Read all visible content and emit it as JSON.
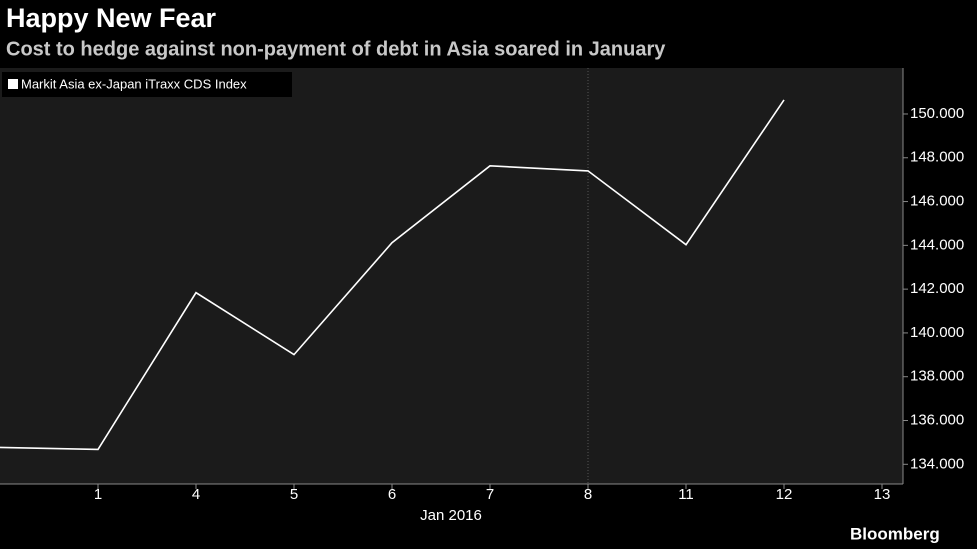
{
  "chart_data": {
    "type": "line",
    "title": "Happy New Fear",
    "subtitle": "Cost to hedge against non-payment of debt in Asia soared in January",
    "x_label": "Jan 2016",
    "source": "Bloomberg",
    "categories": [
      null,
      "1",
      "4",
      "5",
      "6",
      "7",
      "8",
      "11",
      "12",
      "13"
    ],
    "series": [
      {
        "name": "Markit Asia ex-Japan iTraxx CDS Index",
        "color": "#ffffff",
        "values": [
          134.77,
          134.68,
          141.84,
          139.01,
          144.12,
          147.63,
          147.4,
          144.03,
          150.64,
          null
        ]
      }
    ],
    "ylim": [
      133.1,
      152.1
    ],
    "yticks": [
      {
        "value": 134,
        "label": "134.000"
      },
      {
        "value": 136,
        "label": "136.000"
      },
      {
        "value": 138,
        "label": "138.000"
      },
      {
        "value": 140,
        "label": "140.000"
      },
      {
        "value": 142,
        "label": "142.000"
      },
      {
        "value": 144,
        "label": "144.000"
      },
      {
        "value": 146,
        "label": "146.000"
      },
      {
        "value": 148,
        "label": "148.000"
      },
      {
        "value": 150,
        "label": "150.000"
      }
    ],
    "legend": "top-left"
  }
}
